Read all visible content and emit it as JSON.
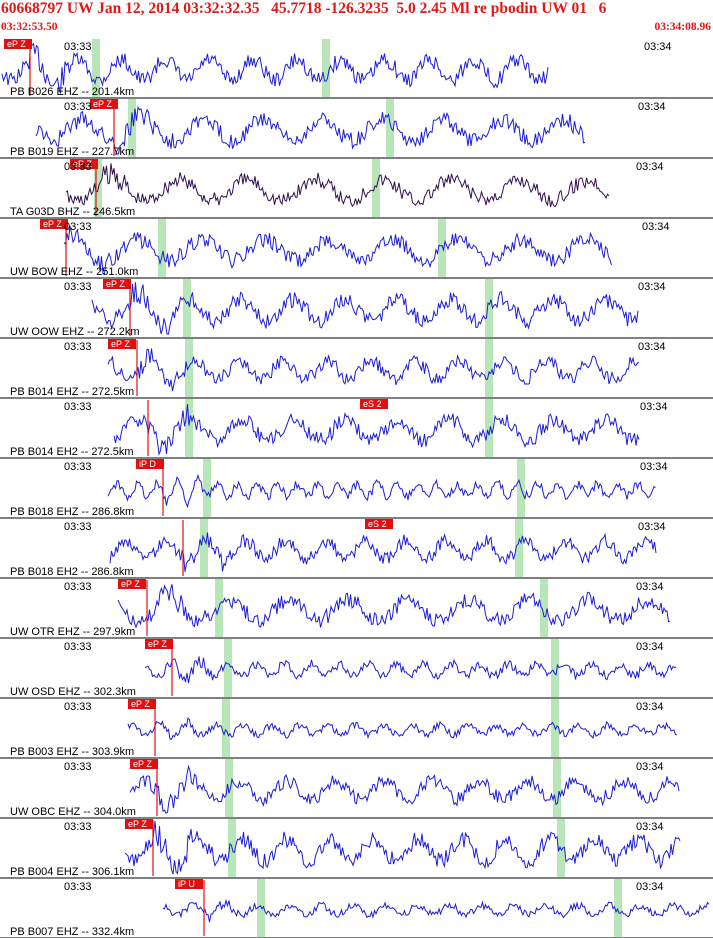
{
  "header": {
    "title": "60668797 UW Jan 12, 2014 03:32:32.35   45.7718 -126.3235  5.0 2.45 Ml re pbodin UW 01   6",
    "start_time": "03:32:53.50",
    "end_time": "03:34:08.96"
  },
  "colors": {
    "header_text": "#e01818",
    "trace": "#1c1cd8",
    "trace_dark": "#301050",
    "pick_box": "#e01010",
    "green_band": "#b8e6b8",
    "divider": "#000000"
  },
  "traces": [
    {
      "station": "PB B026 EHZ -- 201.4km",
      "pick": "eP Z",
      "t_left": "03:33",
      "t_right": "03:34",
      "color": "#1c1cd8"
    },
    {
      "station": "PB B019 EHZ -- 227.7km",
      "pick": "eP Z",
      "t_left": "03:33",
      "t_right": "03:34",
      "color": "#1c1cd8"
    },
    {
      "station": "TA G03D BHZ -- 246.5km",
      "pick": "eP Z",
      "t_left": "03:33",
      "t_right": "03:34",
      "color": "#301050"
    },
    {
      "station": "UW BOW EHZ -- 251.0km",
      "pick": "eP Z",
      "t_left": "03:33",
      "t_right": "03:34",
      "color": "#1c1cd8"
    },
    {
      "station": "UW OOW EHZ -- 272.2km",
      "pick": "eP Z",
      "t_left": "03:33",
      "t_right": "03:34",
      "color": "#1c1cd8"
    },
    {
      "station": "PB B014 EHZ -- 272.5km",
      "pick": "eP Z",
      "t_left": "03:33",
      "t_right": "03:34",
      "color": "#1c1cd8"
    },
    {
      "station": "PB B014 EH2 -- 272.5km",
      "pick": "eS 2",
      "t_left": "03:33",
      "t_right": "03:34",
      "color": "#1c1cd8"
    },
    {
      "station": "PB B018 EHZ -- 286.8km",
      "pick": "iP D",
      "t_left": "03:33",
      "t_right": "03:34",
      "color": "#1c1cd8"
    },
    {
      "station": "PB B018 EH2 -- 286.8km",
      "pick": "eS 2",
      "t_left": "03:33",
      "t_right": "03:34",
      "color": "#1c1cd8"
    },
    {
      "station": "UW OTR EHZ -- 297.9km",
      "pick": "eP Z",
      "t_left": "03:33",
      "t_right": "03:34",
      "color": "#1c1cd8"
    },
    {
      "station": "UW OSD EHZ -- 302.3km",
      "pick": "eP Z",
      "t_left": "03:33",
      "t_right": "03:34",
      "color": "#1c1cd8"
    },
    {
      "station": "PB B003 EHZ -- 303.9km",
      "pick": "eP Z",
      "t_left": "03:33",
      "t_right": "03:34",
      "color": "#1c1cd8"
    },
    {
      "station": "UW OBC EHZ -- 304.0km",
      "pick": "eP Z",
      "t_left": "03:33",
      "t_right": "03:34",
      "color": "#1c1cd8"
    },
    {
      "station": "PB B004 EHZ -- 306.1km",
      "pick": "eP Z",
      "t_left": "03:33",
      "t_right": "03:34",
      "color": "#1c1cd8"
    },
    {
      "station": "PB B007 EHZ -- 332.4km",
      "pick": "iP U",
      "t_left": "03:33",
      "t_right": "03:34",
      "color": "#1c1cd8"
    }
  ]
}
